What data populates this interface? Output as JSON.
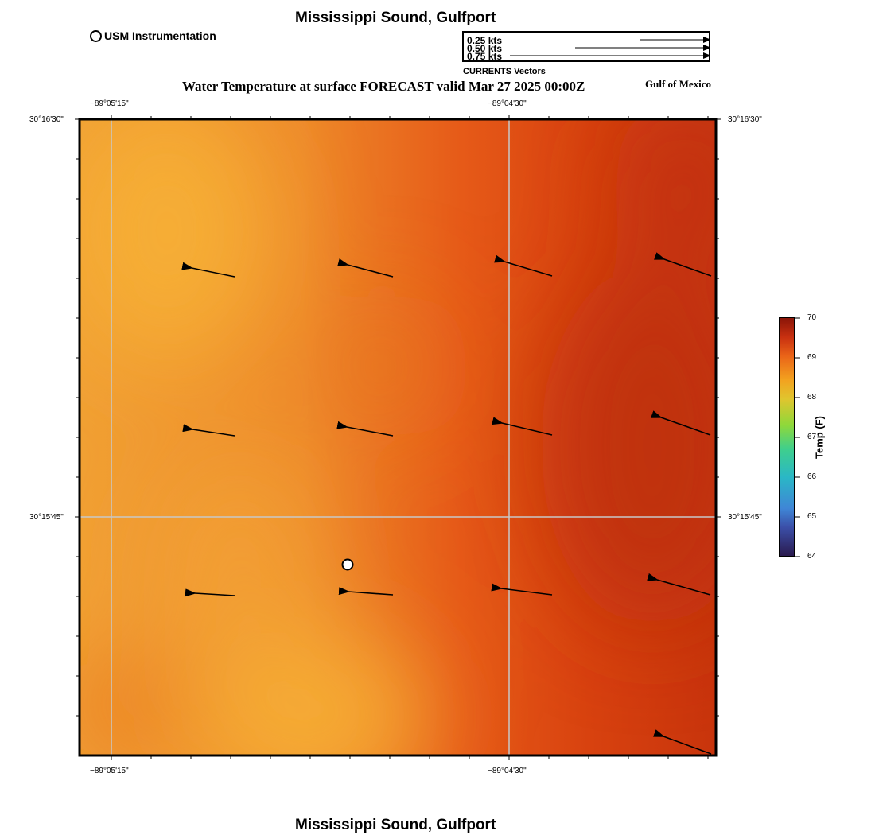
{
  "header": {
    "title": "Mississippi Sound, Gulfport",
    "subtitle": "Water Temperature at surface FORECAST valid Mar 27 2025 00:00Z",
    "region": "Gulf of Mexico"
  },
  "footer": {
    "title": "Mississippi Sound, Gulfport"
  },
  "instrument_legend": {
    "label": "USM Instrumentation"
  },
  "vector_legend": {
    "rows": [
      "0.25 kts",
      "0.50 kts",
      "0.75 kts"
    ],
    "caption": "CURRENTS Vectors"
  },
  "axes": {
    "lon_labels": [
      "−89°05'15\"",
      "−89°04'30\""
    ],
    "lat_labels": [
      "30°16'30\"",
      "30°15'45\""
    ]
  },
  "colorbar": {
    "title": "Temp (F)",
    "ticks": [
      "70",
      "69",
      "68",
      "67",
      "66",
      "65",
      "64"
    ],
    "min": 64,
    "max": 70
  },
  "chart_data": {
    "type": "heatmap",
    "title": "Water Temperature at surface FORECAST valid Mar 27 2025 00:00Z",
    "field": "sea surface temperature",
    "units": "F",
    "approx_range": [
      67.8,
      69.6
    ],
    "currents_kts": [
      {
        "row": 1,
        "values": [
          0.27,
          0.29,
          0.31,
          0.32
        ]
      },
      {
        "row": 2,
        "values": [
          0.27,
          0.29,
          0.31,
          0.33
        ]
      },
      {
        "row": 3,
        "values": [
          0.25,
          0.28,
          0.32,
          0.34
        ]
      },
      {
        "row": 4,
        "values": [
          0.33
        ]
      }
    ],
    "current_direction": "toward west-northwest",
    "colors": {
      "warm_high": "#c23810",
      "mid": "#e86a1c",
      "cool_low": "#f5aa34"
    }
  }
}
